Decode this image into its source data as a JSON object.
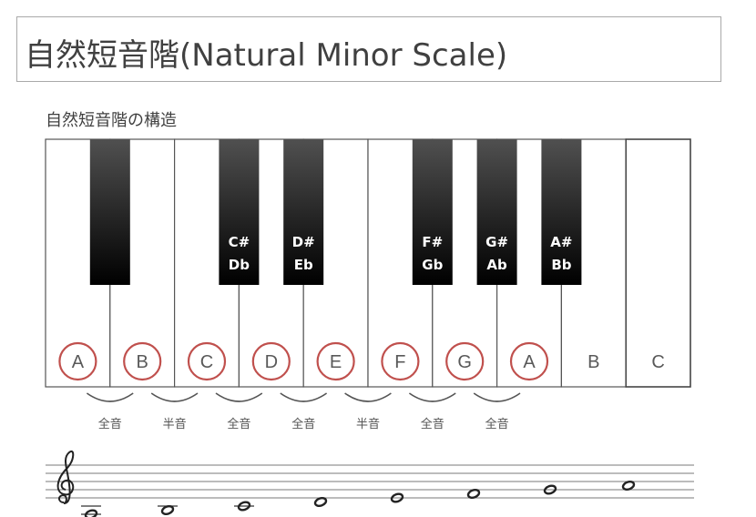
{
  "title": "自然短音階(Natural Minor Scale)",
  "subtitle": "自然短音階の構造",
  "white_keys": [
    {
      "note": "A",
      "circled": true
    },
    {
      "note": "B",
      "circled": true
    },
    {
      "note": "C",
      "circled": true
    },
    {
      "note": "D",
      "circled": true
    },
    {
      "note": "E",
      "circled": true
    },
    {
      "note": "F",
      "circled": true
    },
    {
      "note": "G",
      "circled": true
    },
    {
      "note": "A",
      "circled": true
    },
    {
      "note": "B",
      "circled": false
    },
    {
      "note": "C",
      "circled": false
    }
  ],
  "black_keys": [
    {
      "after_white": 0,
      "top": "",
      "bottom": ""
    },
    {
      "after_white": 2,
      "top": "C#",
      "bottom": "Db"
    },
    {
      "after_white": 3,
      "top": "D#",
      "bottom": "Eb"
    },
    {
      "after_white": 5,
      "top": "F#",
      "bottom": "Gb"
    },
    {
      "after_white": 6,
      "top": "G#",
      "bottom": "Ab"
    },
    {
      "after_white": 7,
      "top": "A#",
      "bottom": "Bb"
    }
  ],
  "intervals": [
    "全音",
    "半音",
    "全音",
    "全音",
    "半音",
    "全音",
    "全音"
  ],
  "staff": {
    "clef": "treble-clef-icon",
    "notes": [
      "A3",
      "B3",
      "C4",
      "D4",
      "E4",
      "F4",
      "G4",
      "A4"
    ]
  },
  "colors": {
    "circle": "#c0504d",
    "black_key_top": "#4a4a4a",
    "black_key_bottom": "#000000",
    "key_border": "#555555"
  }
}
